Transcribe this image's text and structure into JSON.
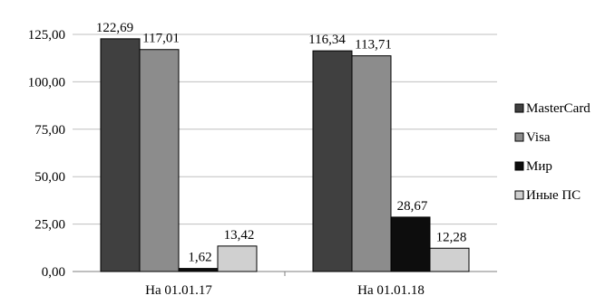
{
  "chart_data": {
    "type": "bar",
    "categories": [
      "На 01.01.17",
      "На 01.01.18"
    ],
    "series": [
      {
        "name": "MasterCard",
        "values": [
          122.69,
          116.34
        ],
        "labels": [
          "122,69",
          "116,34"
        ],
        "color": "#404040"
      },
      {
        "name": "Visa",
        "values": [
          117.01,
          113.71
        ],
        "labels": [
          "117,01",
          "113,71"
        ],
        "color": "#8c8c8c"
      },
      {
        "name": "Мир",
        "values": [
          1.62,
          28.67
        ],
        "labels": [
          "1,62",
          "28,67"
        ],
        "color": "#0d0d0d"
      },
      {
        "name": "Иные ПС",
        "values": [
          13.42,
          12.28
        ],
        "labels": [
          "13,42",
          "12,28"
        ],
        "color": "#d0d0d0"
      }
    ],
    "yticks": [
      "0,00",
      "25,00",
      "50,00",
      "75,00",
      "100,00",
      "125,00"
    ],
    "ytick_values": [
      0,
      25,
      50,
      75,
      100,
      125
    ],
    "ylim": [
      0,
      125
    ],
    "grid": true,
    "legend": "right",
    "title": "",
    "xlabel": "",
    "ylabel": ""
  }
}
